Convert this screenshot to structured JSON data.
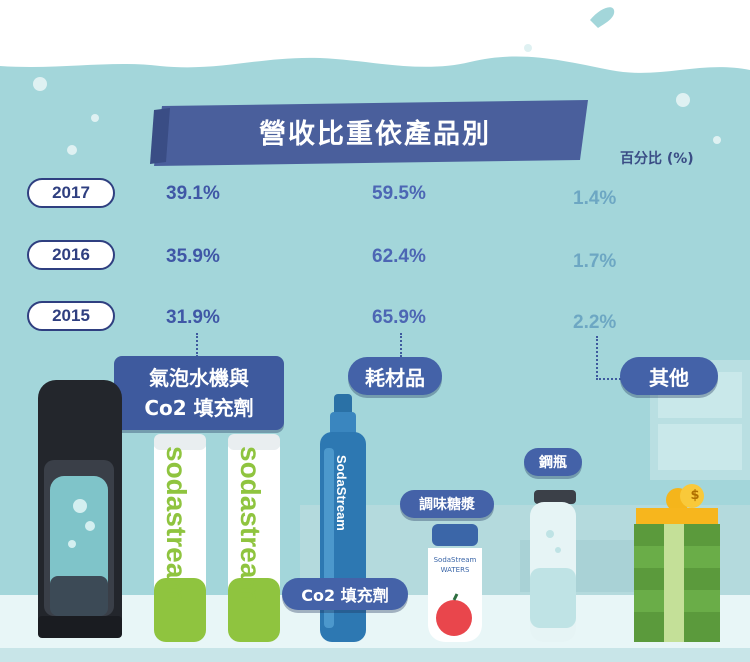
{
  "title": "營收比重依產品別",
  "unit_label": "百分比 (%)",
  "years": [
    {
      "year": "2017",
      "machines": "39.1%",
      "consumables": "59.5%",
      "other": "1.4%"
    },
    {
      "year": "2016",
      "machines": "35.9%",
      "consumables": "62.4%",
      "other": "1.7%"
    },
    {
      "year": "2015",
      "machines": "31.9%",
      "consumables": "65.9%",
      "other": "2.2%"
    }
  ],
  "categories": {
    "machines_line1": "氣泡水機與",
    "machines_line2": "Co2 填充劑",
    "consumables": "耗材品",
    "other": "其他"
  },
  "products": {
    "bottle_brand": "sodastream",
    "cylinder_brand": "SodaStream",
    "cylinder_label": "Co2 填充劑",
    "syrup_label": "調味糖漿",
    "syrup_brand": "SodaStream",
    "syrup_sub": "WATERS",
    "bottle_label": "鋼瓶",
    "coin_symbol": "$"
  },
  "colors": {
    "background": "#9fd4d8",
    "navy": "#2f3f80",
    "label_blue": "#3e5a9e",
    "bottle_green": "#8fc43f"
  }
}
